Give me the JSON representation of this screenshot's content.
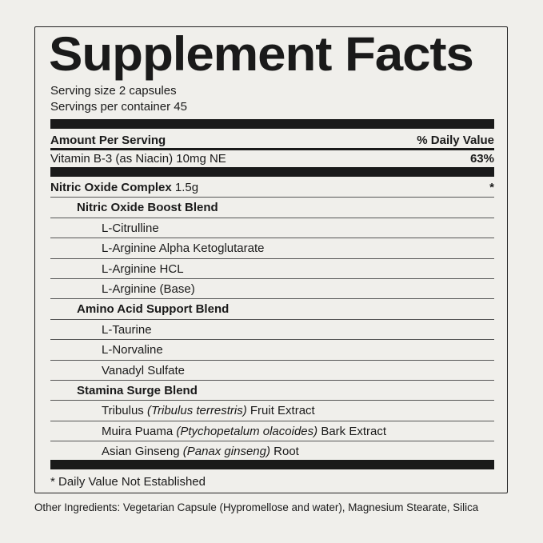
{
  "title": "Supplement Facts",
  "serving_size": "Serving size 2 capsules",
  "servings_per_container": "Servings per container 45",
  "header": {
    "amount": "Amount Per Serving",
    "dv": "% Daily Value"
  },
  "vitamin": {
    "name": "Vitamin B-3 (as Niacin) 10mg NE",
    "dv": "63%"
  },
  "complex": {
    "name": "Nitric Oxide Complex",
    "amount": "1.5g",
    "dv": "*"
  },
  "blends": [
    {
      "name": "Nitric Oxide Boost Blend",
      "items": [
        {
          "plain": "L-Citrulline"
        },
        {
          "plain": "L-Arginine Alpha Ketoglutarate"
        },
        {
          "plain": "L-Arginine HCL"
        },
        {
          "plain": "L-Arginine (Base)"
        }
      ]
    },
    {
      "name": "Amino Acid Support Blend",
      "items": [
        {
          "plain": "L-Taurine"
        },
        {
          "plain": "L-Norvaline"
        },
        {
          "plain": "Vanadyl Sulfate"
        }
      ]
    },
    {
      "name": "Stamina Surge Blend",
      "items": [
        {
          "plain": "Tribulus",
          "italic": "(Tribulus terrestris)",
          "suffix": "Fruit Extract"
        },
        {
          "plain": "Muira Puama",
          "italic": "(Ptychopetalum olacoides)",
          "suffix": "Bark Extract"
        },
        {
          "plain": "Asian Ginseng",
          "italic": "(Panax ginseng)",
          "suffix": "Root"
        }
      ]
    }
  ],
  "footnote": "* Daily Value Not Established",
  "other_ingredients": "Other Ingredients: Vegetarian Capsule (Hypromellose and water), Magnesium Stearate, Silica"
}
